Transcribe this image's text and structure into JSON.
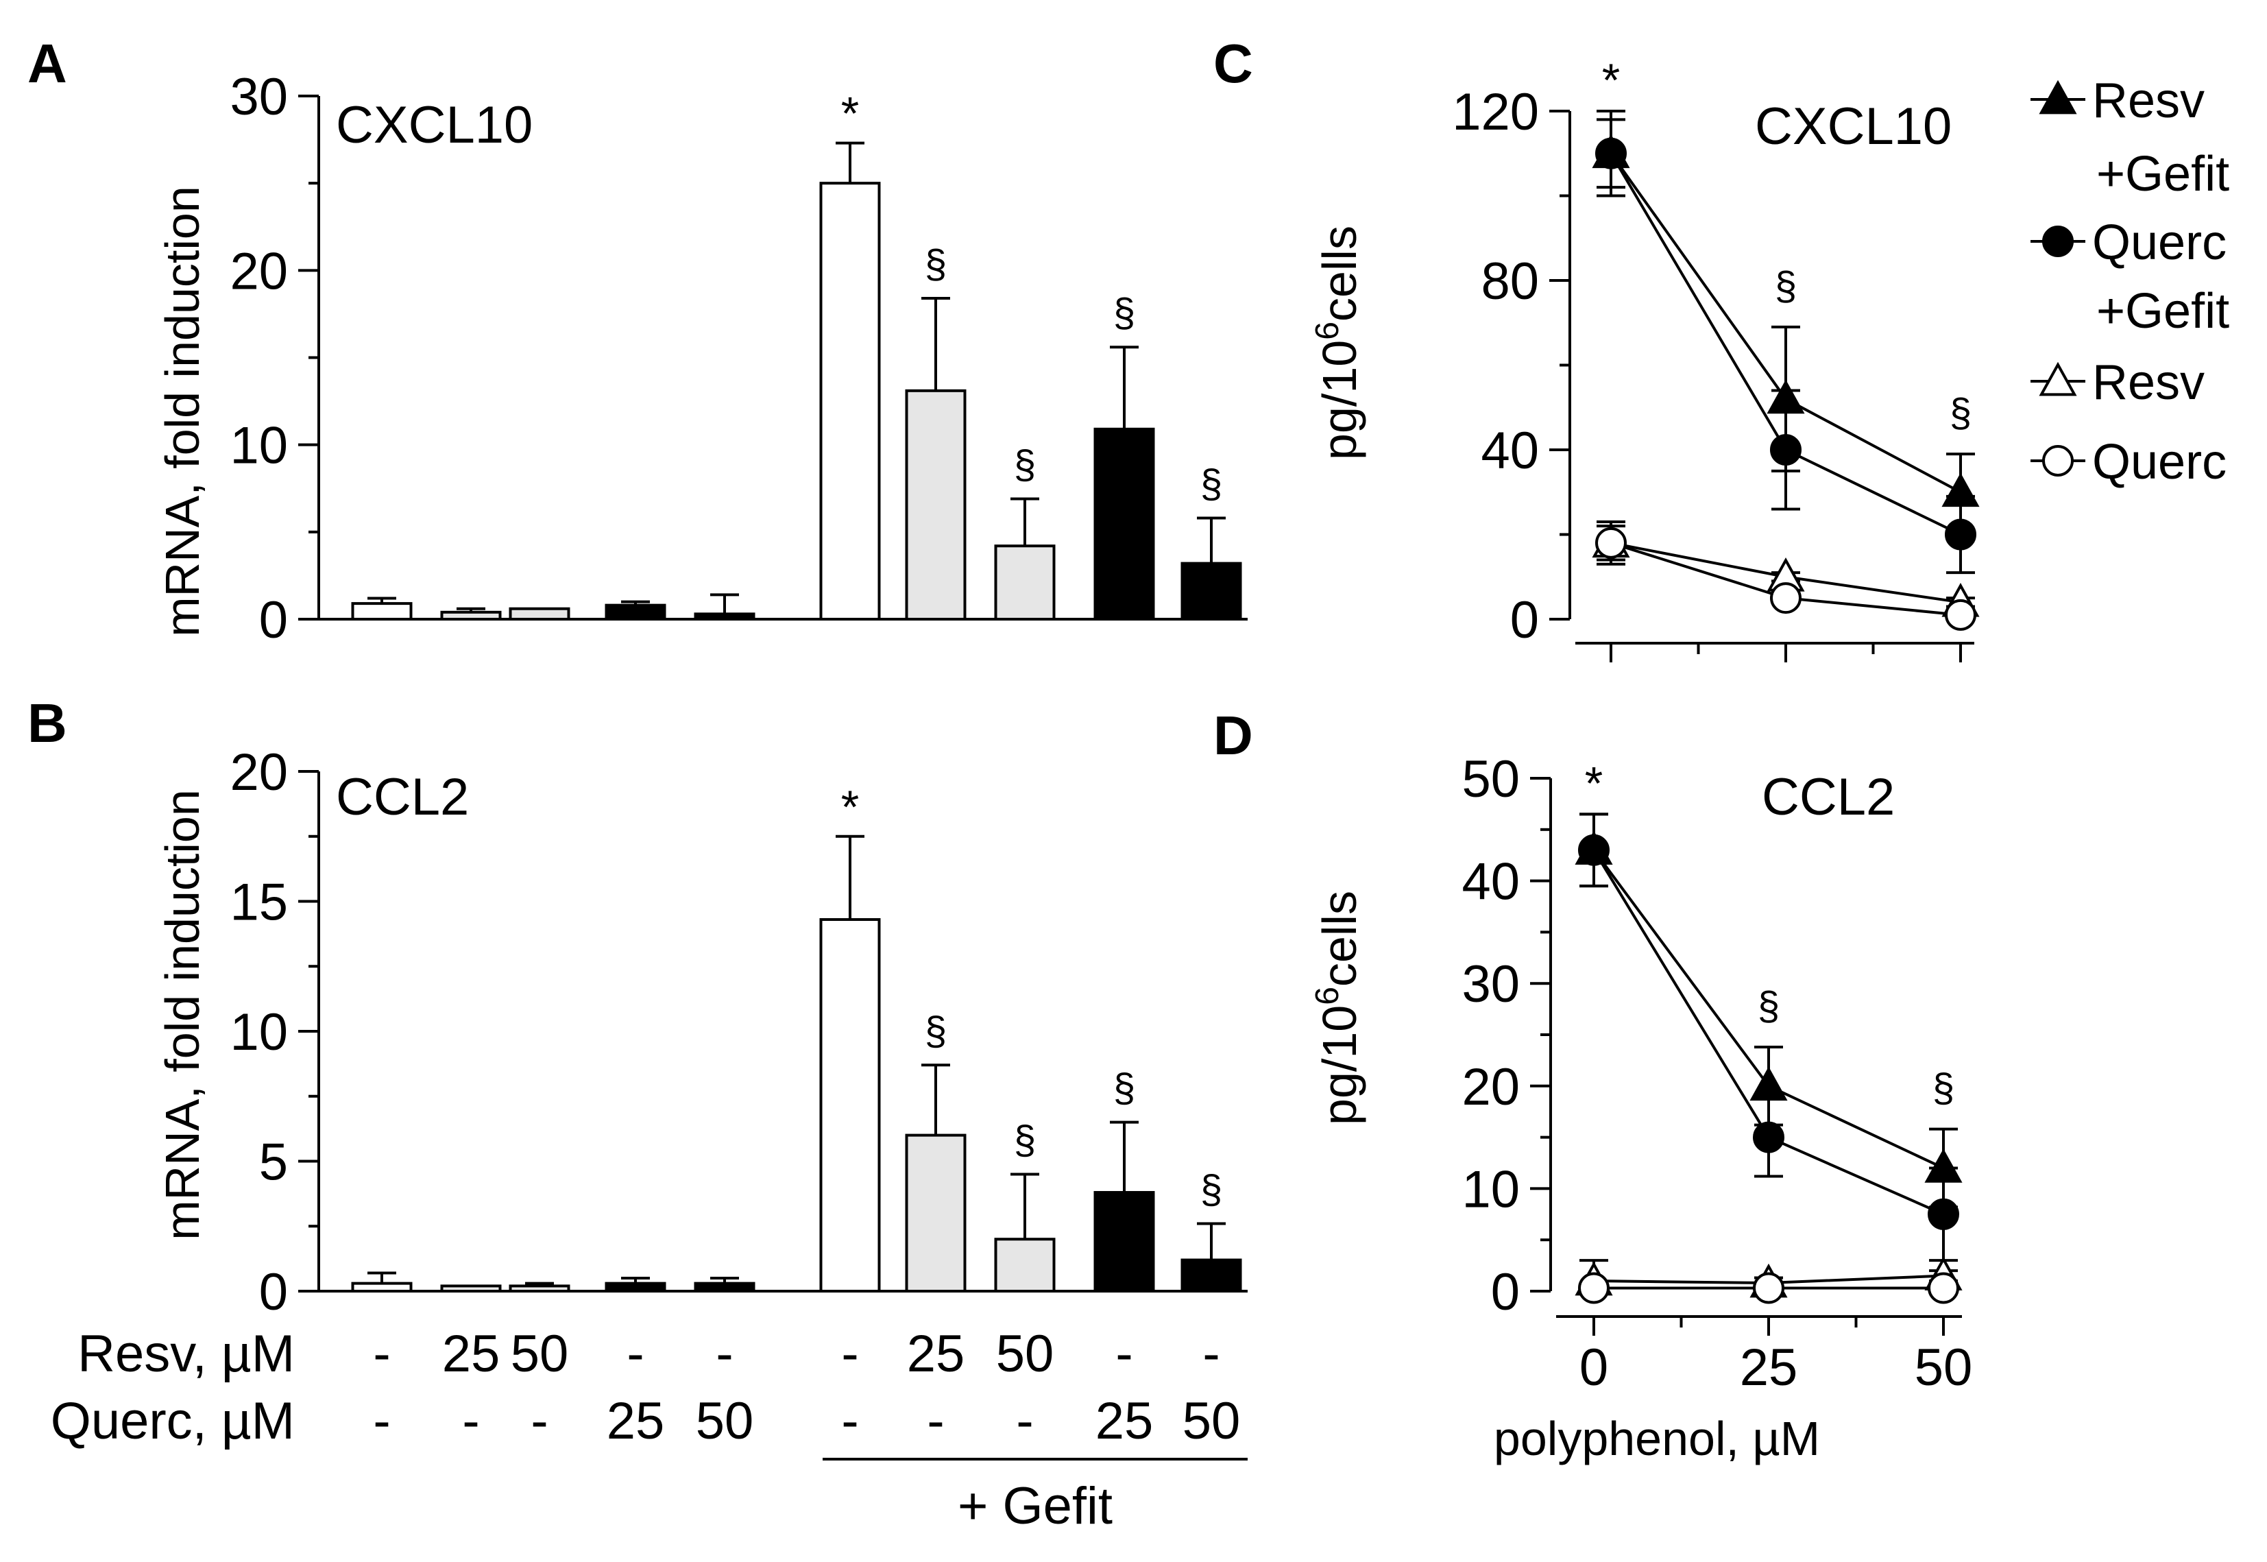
{
  "chart_data": [
    {
      "panel": "A",
      "type": "bar",
      "title": "CXCL10",
      "ylabel": "mRNA, fold induction",
      "ylim": [
        0,
        30
      ],
      "yticks": [
        "0",
        "10",
        "20",
        "30"
      ],
      "values": [
        0.9,
        0.4,
        0.6,
        0.8,
        0.3,
        25.0,
        13.1,
        4.2,
        10.9,
        3.2
      ],
      "errors": [
        0.3,
        0.2,
        0.0,
        0.2,
        1.1,
        2.3,
        5.3,
        2.7,
        4.7,
        2.6
      ],
      "fills": [
        "#ffffff",
        "#e6e6e6",
        "#e6e6e6",
        "#000000",
        "#000000",
        "#ffffff",
        "#e6e6e6",
        "#e6e6e6",
        "#000000",
        "#000000"
      ],
      "annotations": [
        "",
        "",
        "",
        "",
        "",
        "*",
        "§",
        "§",
        "§",
        "§"
      ]
    },
    {
      "panel": "B",
      "type": "bar",
      "title": "CCL2",
      "ylabel": "mRNA, fold induction",
      "ylim": [
        0,
        20
      ],
      "yticks": [
        "0",
        "5",
        "10",
        "15",
        "20"
      ],
      "values": [
        0.3,
        0.2,
        0.2,
        0.3,
        0.3,
        14.3,
        6.0,
        2.0,
        3.8,
        1.2
      ],
      "errors": [
        0.4,
        0.0,
        0.1,
        0.2,
        0.2,
        3.2,
        2.7,
        2.5,
        2.7,
        1.4
      ],
      "fills": [
        "#ffffff",
        "#e6e6e6",
        "#e6e6e6",
        "#000000",
        "#000000",
        "#ffffff",
        "#e6e6e6",
        "#e6e6e6",
        "#000000",
        "#000000"
      ],
      "annotations": [
        "",
        "",
        "",
        "",
        "",
        "*",
        "§",
        "§",
        "§",
        "§"
      ],
      "conditions": {
        "resv_label": "Resv, µM",
        "querc_label": "Querc, µM",
        "resv": [
          "-",
          "25",
          "50",
          "-",
          "-",
          "-",
          "25",
          "50",
          "-",
          "-"
        ],
        "querc": [
          "-",
          "-",
          "-",
          "25",
          "50",
          "-",
          "-",
          "-",
          "25",
          "50"
        ],
        "group_label": "+ Gefit"
      }
    },
    {
      "panel": "C",
      "type": "line",
      "title": "CXCL10",
      "ylabel": "pg/10^6 cells",
      "ylim": [
        0,
        120
      ],
      "yticks": [
        "0",
        "40",
        "80",
        "120"
      ],
      "x": [
        0,
        25,
        50
      ],
      "series": [
        {
          "name": "Resv +Gefit",
          "marker": "triangle-filled",
          "values": [
            110,
            52,
            30
          ],
          "errors": [
            10,
            17,
            9
          ]
        },
        {
          "name": "Querc +Gefit",
          "marker": "circle-filled",
          "values": [
            110,
            40,
            20
          ],
          "errors": [
            8,
            14,
            9
          ]
        },
        {
          "name": "Resv",
          "marker": "triangle-open",
          "values": [
            18,
            10,
            4
          ],
          "errors": [
            4,
            1,
            1
          ]
        },
        {
          "name": "Querc",
          "marker": "circle-open",
          "values": [
            18,
            5,
            1
          ],
          "errors": [
            5,
            1,
            1
          ]
        }
      ],
      "annotations": [
        {
          "x": 0,
          "text": "*"
        },
        {
          "x": 25,
          "text": "§"
        },
        {
          "x": 50,
          "text": "§"
        }
      ]
    },
    {
      "panel": "D",
      "type": "line",
      "title": "CCL2",
      "ylabel": "pg/10^6 cells",
      "xlabel": "polyphenol, µM",
      "ylim": [
        0,
        50
      ],
      "yticks": [
        "0",
        "10",
        "20",
        "30",
        "40",
        "50"
      ],
      "xticks": [
        "0",
        "25",
        "50"
      ],
      "x": [
        0,
        25,
        50
      ],
      "series": [
        {
          "name": "Resv +Gefit",
          "marker": "triangle-filled",
          "values": [
            43,
            20,
            12
          ],
          "errors": [
            3.5,
            3.8,
            3.8
          ]
        },
        {
          "name": "Querc +Gefit",
          "marker": "circle-filled",
          "values": [
            43,
            15,
            7.5
          ],
          "errors": [
            3.5,
            3.8,
            4.5
          ]
        },
        {
          "name": "Resv",
          "marker": "triangle-open",
          "values": [
            1.0,
            0.8,
            1.5
          ],
          "errors": [
            2.0,
            0.5,
            0.5
          ]
        },
        {
          "name": "Querc",
          "marker": "circle-open",
          "values": [
            0.3,
            0.3,
            0.3
          ],
          "errors": [
            0.5,
            0.3,
            0.3
          ]
        }
      ],
      "annotations": [
        {
          "x": 0,
          "text": "*"
        },
        {
          "x": 25,
          "text": "§"
        },
        {
          "x": 50,
          "text": "§"
        }
      ]
    }
  ],
  "legend": {
    "entries": [
      {
        "line1": "Resv",
        "line2": "+Gefit",
        "marker": "triangle-filled"
      },
      {
        "line1": "Querc",
        "line2": "+Gefit",
        "marker": "circle-filled"
      },
      {
        "line1": "Resv",
        "line2": "",
        "marker": "triangle-open"
      },
      {
        "line1": "Querc",
        "line2": "",
        "marker": "circle-open"
      }
    ]
  },
  "panel_letters": [
    "A",
    "B",
    "C",
    "D"
  ],
  "ylabel_parts": {
    "pre": "pg/10",
    "sup": "6",
    "post": "cells"
  }
}
